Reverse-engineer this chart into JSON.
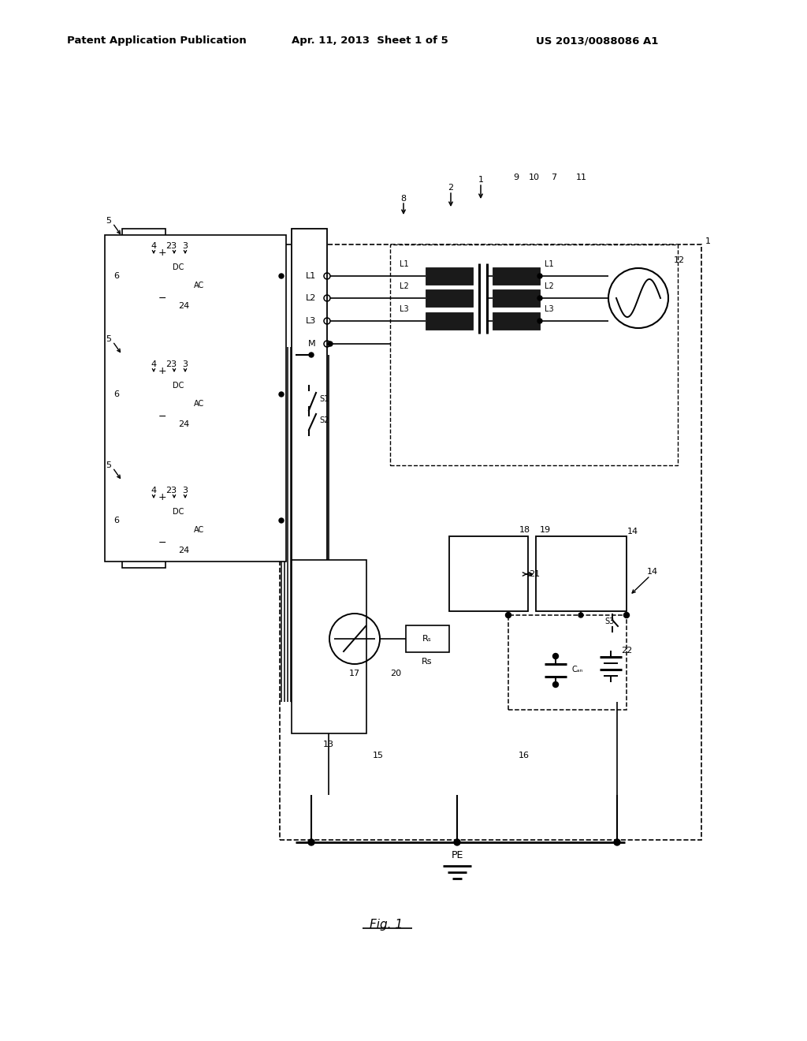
{
  "bg_color": "#ffffff",
  "line_color": "#000000",
  "header_left": "Patent Application Publication",
  "header_center": "Apr. 11, 2013  Sheet 1 of 5",
  "header_right": "US 2013/0088086 A1",
  "fig_label": "Fig. 1",
  "header_fontsize": 9.5,
  "diagram_fontsize": 8.0
}
